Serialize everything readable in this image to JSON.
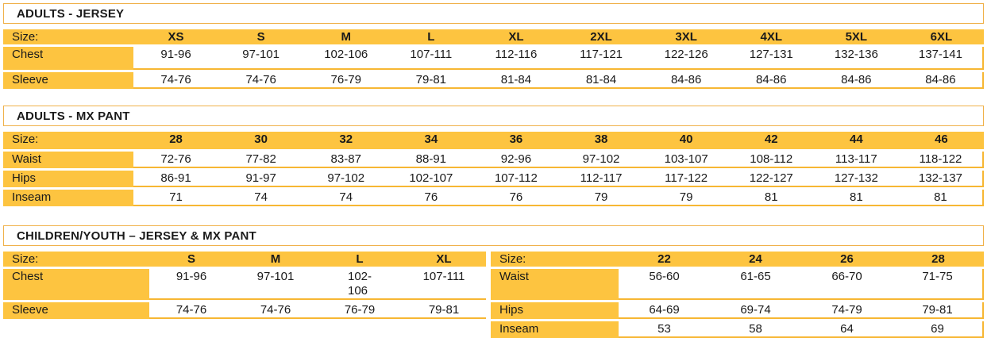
{
  "colors": {
    "cell_fill": "#FDC440",
    "row_line": "#F7B733",
    "title_border": "#F0B14A",
    "text": "#1a1a1a"
  },
  "sections": [
    {
      "title": "ADULTS - JERSEY",
      "tables": [
        {
          "size_label": "Size:",
          "sizes": [
            "XS",
            "S",
            "M",
            "L",
            "XL",
            "2XL",
            "3XL",
            "4XL",
            "5XL",
            "6XL"
          ],
          "rows": [
            {
              "label": "Chest",
              "values": [
                "91-96",
                "97-101",
                "102-106",
                "107-111",
                "112-116",
                "117-121",
                "122-126",
                "127-131",
                "132-136",
                "137-141"
              ]
            },
            {
              "label": "Sleeve",
              "values": [
                "74-76",
                "74-76",
                "76-79",
                "79-81",
                "81-84",
                "81-84",
                "84-86",
                "84-86",
                "84-86",
                "84-86"
              ]
            }
          ]
        }
      ]
    },
    {
      "title": "ADULTS - MX PANT",
      "tables": [
        {
          "size_label": "Size:",
          "sizes": [
            "28",
            "30",
            "32",
            "34",
            "36",
            "38",
            "40",
            "42",
            "44",
            "46"
          ],
          "rows": [
            {
              "label": "Waist",
              "values": [
                "72-76",
                "77-82",
                "83-87",
                "88-91",
                "92-96",
                "97-102",
                "103-107",
                "108-112",
                "113-117",
                "118-122"
              ]
            },
            {
              "label": "Hips",
              "values": [
                "86-91",
                "91-97",
                "97-102",
                "102-107",
                "107-112",
                "112-117",
                "117-122",
                "122-127",
                "127-132",
                "132-137"
              ]
            },
            {
              "label": "Inseam",
              "values": [
                "71",
                "74",
                "74",
                "76",
                "76",
                "79",
                "79",
                "81",
                "81",
                "81"
              ]
            }
          ]
        }
      ]
    },
    {
      "title": "CHILDREN/YOUTH – JERSEY & MX PANT",
      "tables": [
        {
          "size_label": "Size:",
          "sizes": [
            "S",
            "M",
            "L",
            "XL"
          ],
          "rows": [
            {
              "label": "Chest",
              "values": [
                "91-96",
                "97-101",
                "102-\n106",
                "107-111"
              ]
            },
            {
              "label": "Sleeve",
              "values": [
                "74-76",
                "74-76",
                "76-79",
                "79-81"
              ]
            }
          ]
        },
        {
          "size_label": "Size:",
          "sizes": [
            "22",
            "24",
            "26",
            "28"
          ],
          "rows": [
            {
              "label": "Waist",
              "values": [
                "56-60",
                "61-65",
                "66-70",
                "71-75"
              ]
            },
            {
              "label": "Hips",
              "values": [
                "64-69",
                "69-74",
                "74-79",
                "79-81"
              ]
            },
            {
              "label": "Inseam",
              "values": [
                "53",
                "58",
                "64",
                "69"
              ]
            }
          ]
        }
      ]
    }
  ]
}
